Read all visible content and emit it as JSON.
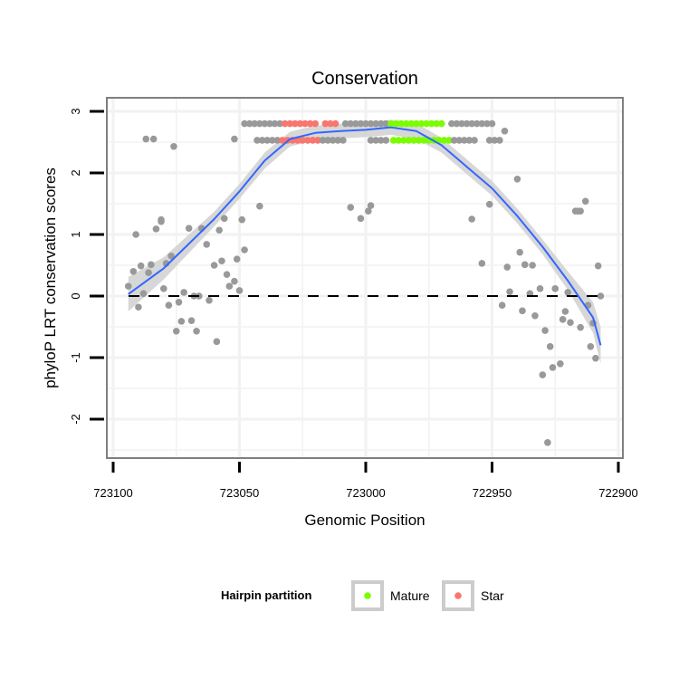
{
  "chart_data": {
    "type": "scatter",
    "title": "Conservation",
    "xlabel": "Genomic Position",
    "ylabel": "phyloP LRT conservation scores",
    "xlim": [
      723100,
      722900
    ],
    "ylim": [
      -2.6,
      3.2
    ],
    "x_reversed": true,
    "xticks": [
      723100,
      723050,
      723000,
      722950,
      722900
    ],
    "xtick_labels": [
      "723100",
      "723050",
      "723000",
      "722950",
      "722900"
    ],
    "yticks": [
      -2,
      -1,
      0,
      1,
      2,
      3
    ],
    "ytick_labels": [
      "-2",
      "-1",
      "0",
      "1",
      "2",
      "3"
    ],
    "grid": true,
    "hline": 0,
    "legend": {
      "title": "Hairpin partition",
      "position": "bottom",
      "entries": [
        {
          "label": "Mature",
          "color": "#7cfc00"
        },
        {
          "label": "Star",
          "color": "#f8766d"
        }
      ]
    },
    "colors": {
      "other": "#999999",
      "Mature": "#7cfc00",
      "Star": "#f8766d",
      "smooth": "#3366ff",
      "band": "#d3d3d3"
    },
    "top_rows": [
      {
        "y": 2.8,
        "segments": [
          {
            "from": 723048,
            "to": 723034,
            "group": "other"
          },
          {
            "from": 723032,
            "to": 723020,
            "group": "Star"
          },
          {
            "from": 723016,
            "to": 723012,
            "group": "Star"
          },
          {
            "from": 723008,
            "to": 722992,
            "group": "other"
          },
          {
            "from": 722990,
            "to": 722970,
            "group": "Mature"
          },
          {
            "from": 722966,
            "to": 722950,
            "group": "other"
          }
        ]
      },
      {
        "y": 2.53,
        "segments": [
          {
            "from": 723043,
            "to": 723035,
            "group": "other"
          },
          {
            "from": 723033,
            "to": 723019,
            "group": "Star"
          },
          {
            "from": 723017,
            "to": 723009,
            "group": "other"
          },
          {
            "from": 722998,
            "to": 722991,
            "group": "other"
          },
          {
            "from": 722989,
            "to": 722967,
            "group": "Mature"
          },
          {
            "from": 722965,
            "to": 722957,
            "group": "other"
          },
          {
            "from": 722951,
            "to": 722947,
            "group": "other"
          }
        ]
      }
    ],
    "points": [
      [
        723087,
        2.55
      ],
      [
        723084,
        2.55
      ],
      [
        723076,
        2.43
      ],
      [
        723052,
        2.55
      ],
      [
        722945,
        2.68
      ],
      [
        723091,
        1.0
      ],
      [
        723083,
        1.09
      ],
      [
        723081,
        1.21
      ],
      [
        723081,
        1.24
      ],
      [
        723092,
        0.4
      ],
      [
        723094,
        0.16
      ],
      [
        723089,
        0.49
      ],
      [
        723085,
        0.51
      ],
      [
        723086,
        0.38
      ],
      [
        723088,
        0.04
      ],
      [
        723090,
        -0.18
      ],
      [
        723079,
        0.53
      ],
      [
        723077,
        0.65
      ],
      [
        723080,
        0.12
      ],
      [
        723078,
        -0.15
      ],
      [
        723074,
        -0.1
      ],
      [
        723072,
        0.06
      ],
      [
        723068,
        0
      ],
      [
        723066,
        0
      ],
      [
        723062,
        -0.07
      ],
      [
        723073,
        -0.41
      ],
      [
        723069,
        -0.4
      ],
      [
        723075,
        -0.57
      ],
      [
        723067,
        -0.57
      ],
      [
        723059,
        -0.74
      ],
      [
        723070,
        1.1
      ],
      [
        723065,
        1.1
      ],
      [
        723063,
        0.84
      ],
      [
        723058,
        1.07
      ],
      [
        723056,
        1.26
      ],
      [
        723049,
        1.24
      ],
      [
        723042,
        1.46
      ],
      [
        723060,
        0.5
      ],
      [
        723057,
        0.57
      ],
      [
        723055,
        0.35
      ],
      [
        723054,
        0.16
      ],
      [
        723052,
        0.24
      ],
      [
        723050,
        0.09
      ],
      [
        723051,
        0.6
      ],
      [
        723048,
        0.75
      ],
      [
        723006,
        1.44
      ],
      [
        723002,
        1.26
      ],
      [
        722999,
        1.38
      ],
      [
        722998,
        1.47
      ],
      [
        722958,
        1.25
      ],
      [
        722951,
        1.49
      ],
      [
        722940,
        1.9
      ],
      [
        722913,
        1.54
      ],
      [
        722916,
        1.38
      ],
      [
        722915,
        1.38
      ],
      [
        722917,
        1.38
      ],
      [
        722954,
        0.53
      ],
      [
        722944,
        0.47
      ],
      [
        722939,
        0.71
      ],
      [
        722937,
        0.51
      ],
      [
        722934,
        0.5
      ],
      [
        722908,
        0.49
      ],
      [
        722943,
        0.07
      ],
      [
        722935,
        0.04
      ],
      [
        722931,
        0.12
      ],
      [
        722925,
        0.12
      ],
      [
        722920,
        0.06
      ],
      [
        722907,
        0
      ],
      [
        722946,
        -0.15
      ],
      [
        722938,
        -0.24
      ],
      [
        722933,
        -0.32
      ],
      [
        722929,
        -0.56
      ],
      [
        722927,
        -0.82
      ],
      [
        722930,
        -1.28
      ],
      [
        722926,
        -1.16
      ],
      [
        722923,
        -1.1
      ],
      [
        722928,
        -2.38
      ],
      [
        722921,
        -0.25
      ],
      [
        722922,
        -0.38
      ],
      [
        722919,
        -0.43
      ],
      [
        722915,
        -0.51
      ],
      [
        722912,
        -0.15
      ],
      [
        722910,
        -0.44
      ],
      [
        722911,
        -0.82
      ],
      [
        722909,
        -1.01
      ]
    ],
    "smooth": {
      "x": [
        723094,
        723080,
        723060,
        723050,
        723040,
        723030,
        723020,
        723010,
        723000,
        722990,
        722980,
        722970,
        722960,
        722950,
        722940,
        722930,
        722920,
        722910,
        722907
      ],
      "y": [
        0.03,
        0.45,
        1.25,
        1.7,
        2.2,
        2.55,
        2.65,
        2.68,
        2.7,
        2.74,
        2.68,
        2.45,
        2.1,
        1.75,
        1.3,
        0.8,
        0.25,
        -0.35,
        -0.8
      ],
      "se": [
        0.28,
        0.18,
        0.12,
        0.12,
        0.13,
        0.12,
        0.12,
        0.12,
        0.12,
        0.12,
        0.13,
        0.12,
        0.12,
        0.12,
        0.12,
        0.12,
        0.15,
        0.25,
        0.3
      ]
    }
  }
}
